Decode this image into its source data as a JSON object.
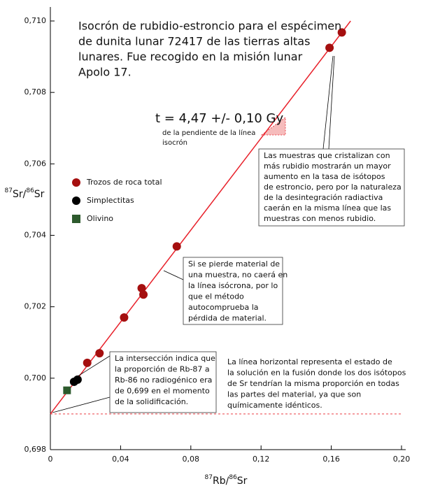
{
  "chart_data": {
    "type": "scatter",
    "title": [
      "Isocrón de rubidio-estroncio para el espécimen",
      "de dunita lunar 72417 de las tierras altas",
      "lunares. Fue recogido en la misión lunar",
      "Apolo 17."
    ],
    "xlabel": [
      "87",
      "Rb/",
      "86",
      "Sr"
    ],
    "ylabel": [
      "87",
      "Sr/",
      "86",
      "Sr"
    ],
    "xlim": [
      0,
      0.2
    ],
    "ylim": [
      0.698,
      0.71
    ],
    "xticks": [
      0,
      {
        "value": 0.04,
        "label": "0,04"
      },
      {
        "value": 0.08,
        "label": "0,08"
      },
      {
        "value": 0.12,
        "label": "0,12"
      },
      {
        "value": 0.16,
        "label": "0,16"
      },
      {
        "value": 0.2,
        "label": "0,20"
      }
    ],
    "yticks": [
      {
        "value": 0.698,
        "label": "0,698"
      },
      {
        "value": 0.7,
        "label": "0,700"
      },
      {
        "value": 0.702,
        "label": "0,702"
      },
      {
        "value": 0.704,
        "label": "0,704"
      },
      {
        "value": 0.706,
        "label": "0,706"
      },
      {
        "value": 0.708,
        "label": "0,708"
      },
      {
        "value": 0.71,
        "label": "0,710"
      }
    ],
    "series": [
      {
        "name": "Trozos de roca total",
        "color": "#a50f0f",
        "marker": "circle",
        "x": [
          0.021,
          0.028,
          0.042,
          0.052,
          0.053,
          0.072,
          0.159,
          0.166
        ],
        "values": [
          0.70043,
          0.7007,
          0.7017,
          0.70252,
          0.70234,
          0.70369,
          0.70925,
          0.70968
        ]
      },
      {
        "name": "Simplectitas",
        "color": "#000000",
        "marker": "circle",
        "x": [
          0.0135,
          0.0155
        ],
        "values": [
          0.6999,
          0.69996
        ]
      },
      {
        "name": "Olivino",
        "color": "#2d5a2d",
        "marker": "square",
        "x": [
          0.0095
        ],
        "values": [
          0.69966
        ]
      }
    ],
    "lines": [
      {
        "color": "#e8202a",
        "dashed": false,
        "x": [
          0,
          0.171
        ],
        "values": [
          0.699,
          0.71
        ]
      },
      {
        "color": "#e8202a",
        "dashed": true,
        "x": [
          0,
          0.2
        ],
        "values": [
          0.699,
          0.699
        ]
      }
    ],
    "age": "t = 4,47 +/- 0,10 Gy",
    "age_note": [
      "de la pendiente de la línea",
      "isocrón"
    ],
    "annotations": [
      [
        "Las muestras que cristalizan con",
        "más rubidio mostrarán un mayor",
        "aumento en la tasa de isótopos",
        "de estroncio, pero por la naturaleza",
        "de la desintegración radiactiva",
        "caerán en la misma línea que las",
        "muestras con menos rubidio."
      ],
      [
        "Si se pierde material de",
        "una muestra, no caerá en",
        "la línea isócrona, por lo",
        "que el método",
        "autocomprueba la",
        "pérdida de material."
      ],
      [
        "La intersección indica que",
        "la proporción de Rb-87 a",
        "Rb-86 no radiogénico era",
        "de 0,699 en el momento",
        "de la solidificación."
      ],
      [
        "La línea horizontal representa el estado de",
        "la solución en la fusión donde los dos isótopos",
        "de Sr tendrían la misma proporción en todas",
        "las partes del material, ya que son",
        "químicamente idénticos."
      ]
    ]
  }
}
